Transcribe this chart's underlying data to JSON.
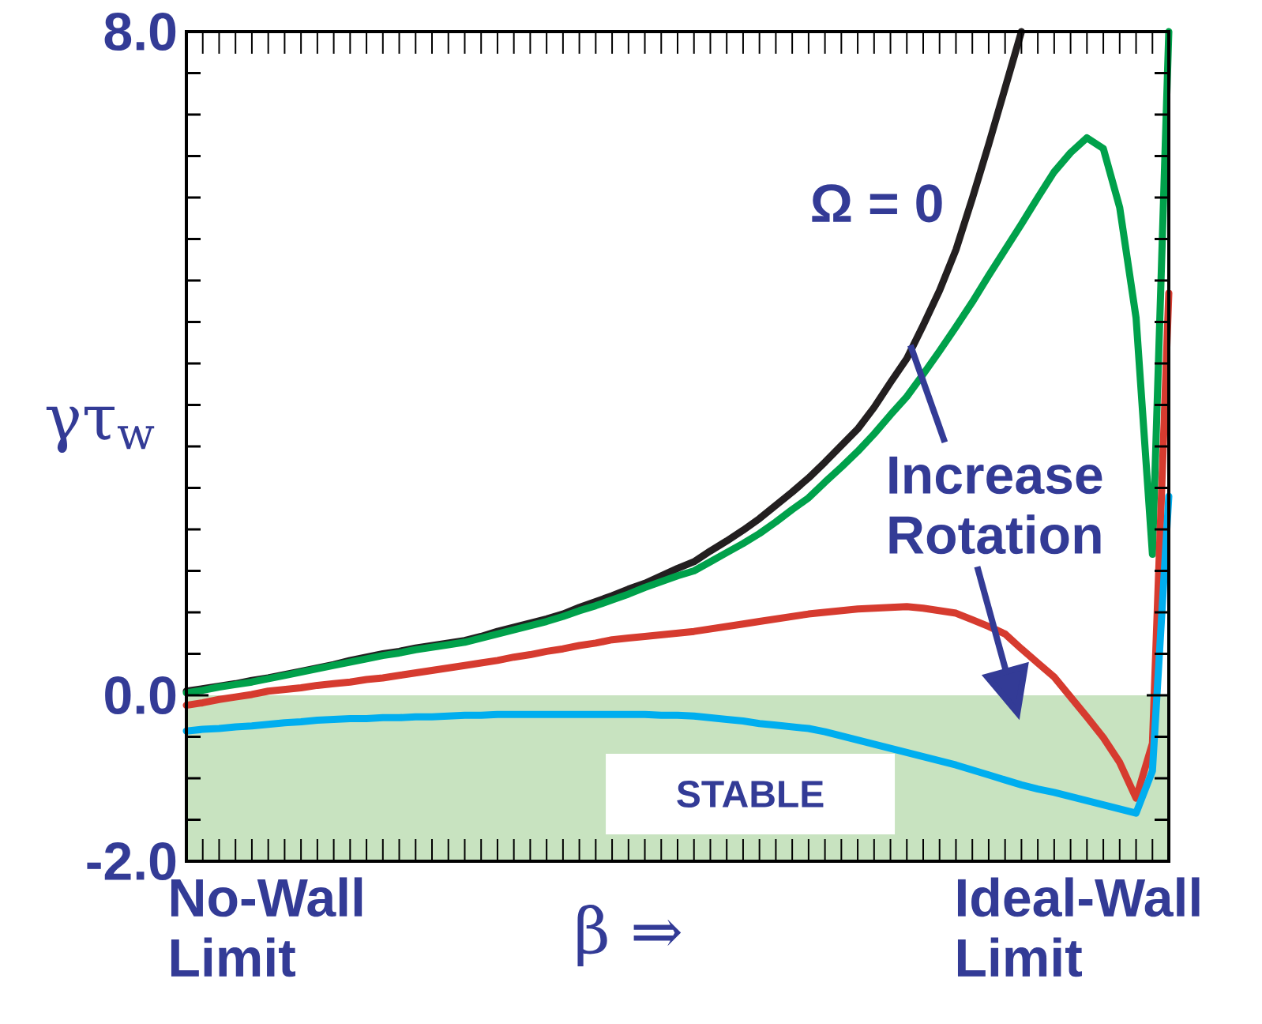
{
  "chart_data": {
    "type": "line",
    "xlabel": "β ⇒",
    "ylabel": "γτ$_{w}$",
    "categories": [
      null,
      null,
      null,
      null,
      null,
      null,
      null,
      null,
      null,
      null,
      null,
      null,
      null,
      null,
      null,
      null,
      null,
      null,
      null,
      null,
      null,
      null,
      null,
      null,
      null,
      null,
      null,
      null,
      null,
      null,
      null,
      null,
      null,
      null,
      null,
      null,
      null,
      null,
      null,
      null,
      null,
      null,
      null,
      null,
      null,
      null,
      null,
      null,
      null,
      null,
      null,
      null,
      null,
      null,
      null,
      null,
      null,
      null,
      null,
      null,
      null
    ],
    "ylim": [
      -2,
      8
    ],
    "yticks": [
      {
        "value": -2,
        "label": "-2.0"
      },
      {
        "value": 0,
        "label": "0.0"
      },
      {
        "value": 8,
        "label": "8.0"
      }
    ],
    "series": [
      {
        "color": "#231f20",
        "values": [
          0.05,
          0.08,
          0.11,
          0.14,
          0.18,
          0.21,
          0.25,
          0.29,
          0.33,
          0.37,
          0.42,
          0.46,
          0.5,
          0.53,
          0.57,
          0.6,
          0.63,
          0.66,
          0.71,
          0.77,
          0.82,
          0.87,
          0.92,
          0.98,
          1.06,
          1.13,
          1.2,
          1.28,
          1.35,
          1.44,
          1.53,
          1.61,
          1.74,
          1.86,
          1.99,
          2.13,
          2.29,
          2.45,
          2.62,
          2.81,
          3.01,
          3.21,
          3.47,
          3.77,
          4.06,
          4.46,
          4.88,
          5.37,
          5.99,
          6.64,
          7.32,
          8.0,
          null,
          null,
          null,
          null,
          null,
          null,
          null,
          null,
          null
        ]
      },
      {
        "color": "#00a14b",
        "values": [
          0.03,
          0.06,
          0.1,
          0.13,
          0.16,
          0.2,
          0.24,
          0.28,
          0.32,
          0.36,
          0.4,
          0.44,
          0.48,
          0.51,
          0.55,
          0.58,
          0.61,
          0.64,
          0.69,
          0.74,
          0.79,
          0.84,
          0.89,
          0.95,
          1.02,
          1.08,
          1.15,
          1.22,
          1.3,
          1.37,
          1.44,
          1.5,
          1.61,
          1.72,
          1.83,
          1.95,
          2.09,
          2.24,
          2.38,
          2.57,
          2.75,
          2.94,
          3.15,
          3.38,
          3.6,
          3.87,
          4.15,
          4.44,
          4.74,
          5.06,
          5.37,
          5.68,
          6.0,
          6.31,
          6.54,
          6.72,
          6.59,
          5.88,
          4.55,
          1.7,
          8.0
        ]
      },
      {
        "color": "#d63b2f",
        "values": [
          -0.12,
          -0.09,
          -0.05,
          -0.02,
          0.01,
          0.05,
          0.07,
          0.09,
          0.12,
          0.14,
          0.16,
          0.19,
          0.21,
          0.24,
          0.27,
          0.3,
          0.33,
          0.36,
          0.39,
          0.42,
          0.46,
          0.49,
          0.53,
          0.56,
          0.6,
          0.63,
          0.67,
          0.69,
          0.71,
          0.73,
          0.75,
          0.77,
          0.8,
          0.83,
          0.86,
          0.89,
          0.92,
          0.95,
          0.98,
          1.0,
          1.02,
          1.04,
          1.05,
          1.06,
          1.07,
          1.05,
          1.02,
          0.99,
          0.91,
          0.83,
          0.74,
          0.56,
          0.39,
          0.22,
          -0.02,
          -0.26,
          -0.51,
          -0.81,
          -1.24,
          -0.58,
          4.85
        ]
      },
      {
        "color": "#00aeef",
        "values": [
          -0.43,
          -0.41,
          -0.4,
          -0.38,
          -0.37,
          -0.35,
          -0.33,
          -0.32,
          -0.3,
          -0.29,
          -0.28,
          -0.28,
          -0.27,
          -0.27,
          -0.26,
          -0.26,
          -0.25,
          -0.24,
          -0.24,
          -0.23,
          -0.23,
          -0.23,
          -0.23,
          -0.23,
          -0.23,
          -0.23,
          -0.23,
          -0.23,
          -0.23,
          -0.24,
          -0.24,
          -0.25,
          -0.27,
          -0.29,
          -0.31,
          -0.34,
          -0.36,
          -0.38,
          -0.4,
          -0.44,
          -0.49,
          -0.54,
          -0.59,
          -0.64,
          -0.69,
          -0.74,
          -0.79,
          -0.84,
          -0.9,
          -0.96,
          -1.02,
          -1.08,
          -1.13,
          -1.17,
          -1.22,
          -1.27,
          -1.32,
          -1.37,
          -1.42,
          -0.91,
          2.4
        ]
      }
    ],
    "bands": [
      {
        "axis": "y",
        "from": -2,
        "to": 0,
        "label": "STABLE",
        "color": "#c8e3c0"
      }
    ],
    "annotations": [
      "Ω = 0",
      "Increase Rotation",
      "No-Wall Limit",
      "Ideal-Wall Limit"
    ]
  }
}
